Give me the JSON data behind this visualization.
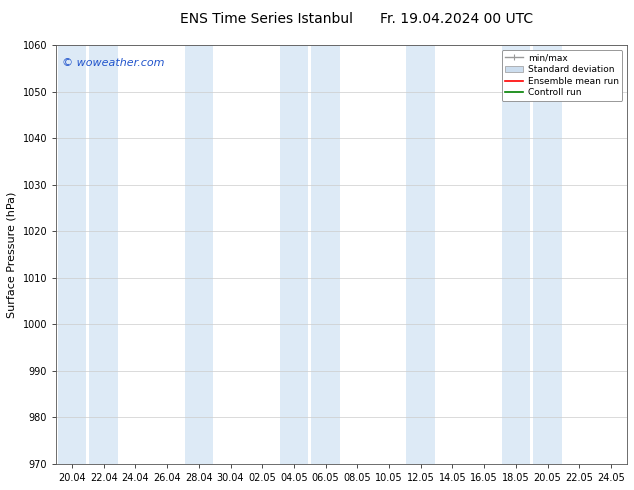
{
  "title": "ENS Time Series Istanbul",
  "title2": "Fr. 19.04.2024 00 UTC",
  "ylabel": "Surface Pressure (hPa)",
  "ylim": [
    970,
    1060
  ],
  "yticks": [
    970,
    980,
    990,
    1000,
    1010,
    1020,
    1030,
    1040,
    1050,
    1060
  ],
  "xtick_labels": [
    "20.04",
    "22.04",
    "24.04",
    "26.04",
    "28.04",
    "30.04",
    "02.05",
    "04.05",
    "06.05",
    "08.05",
    "10.05",
    "12.05",
    "14.05",
    "16.05",
    "18.05",
    "20.05",
    "22.05",
    "24.05"
  ],
  "watermark": "© woweather.com",
  "bg_color": "#ffffff",
  "plot_bg_color": "#ffffff",
  "shade_color": "#ddeaf6",
  "shade_indices": [
    0,
    1,
    4,
    7,
    8,
    11,
    14,
    15
  ],
  "legend_labels": [
    "min/max",
    "Standard deviation",
    "Ensemble mean run",
    "Controll run"
  ],
  "legend_colors": [
    "#aaaaaa",
    "#ccddee",
    "#ff0000",
    "#008000"
  ],
  "title_fontsize": 10,
  "tick_fontsize": 7,
  "ylabel_fontsize": 8,
  "watermark_color": "#2255cc",
  "watermark_fontsize": 8
}
